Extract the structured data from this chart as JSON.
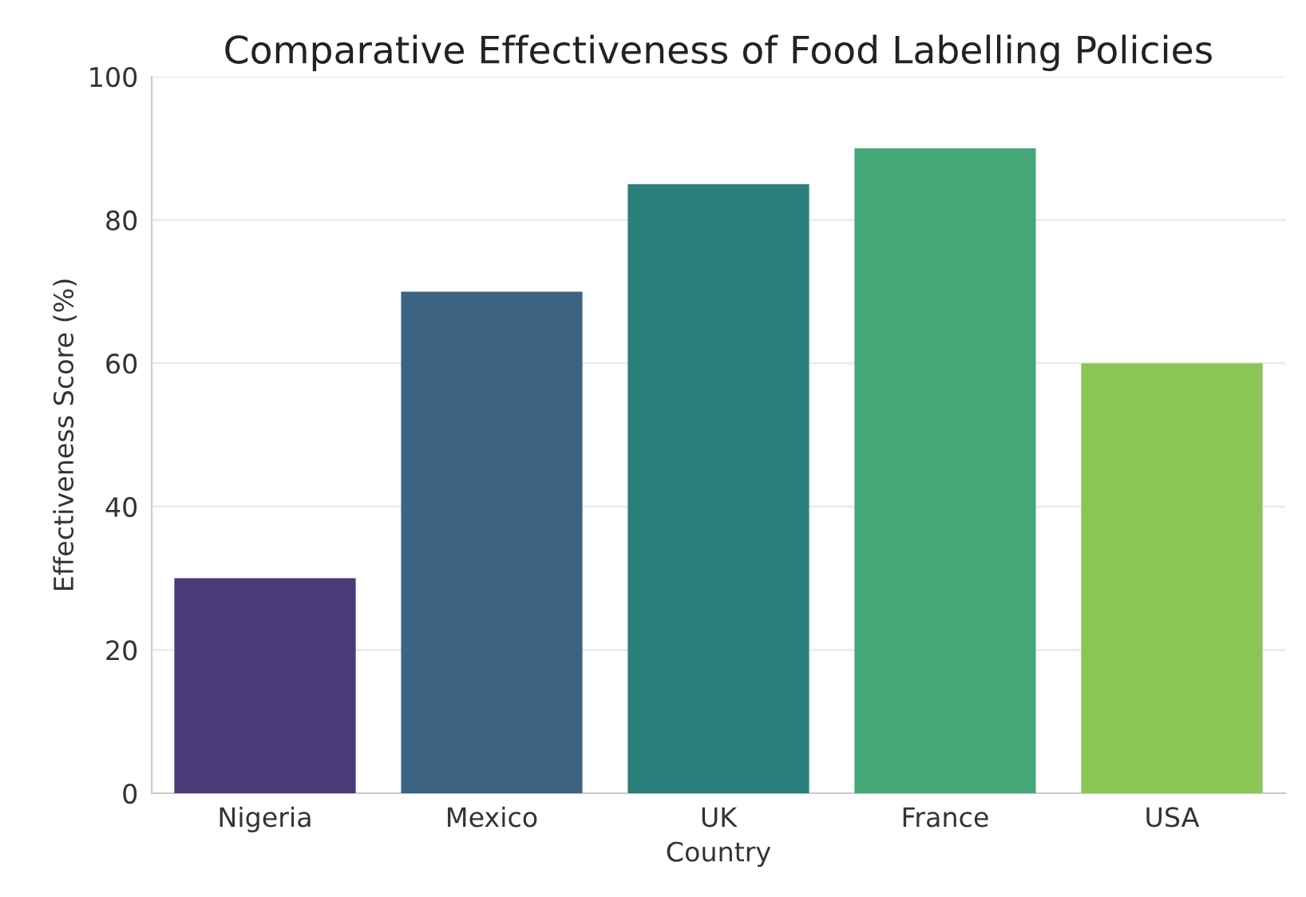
{
  "chart_data": {
    "type": "bar",
    "title": "Comparative Effectiveness of Food Labelling Policies",
    "xlabel": "Country",
    "ylabel": "Effectiveness Score (%)",
    "categories": [
      "Nigeria",
      "Mexico",
      "UK",
      "France",
      "USA"
    ],
    "values": [
      30,
      70,
      85,
      90,
      60
    ],
    "colors": [
      "#4a3b78",
      "#3d6382",
      "#2b7f7b",
      "#45a777",
      "#8bc556"
    ],
    "ylim": [
      0,
      100
    ],
    "yticks": [
      0,
      20,
      40,
      60,
      80,
      100
    ],
    "grid": "y"
  }
}
